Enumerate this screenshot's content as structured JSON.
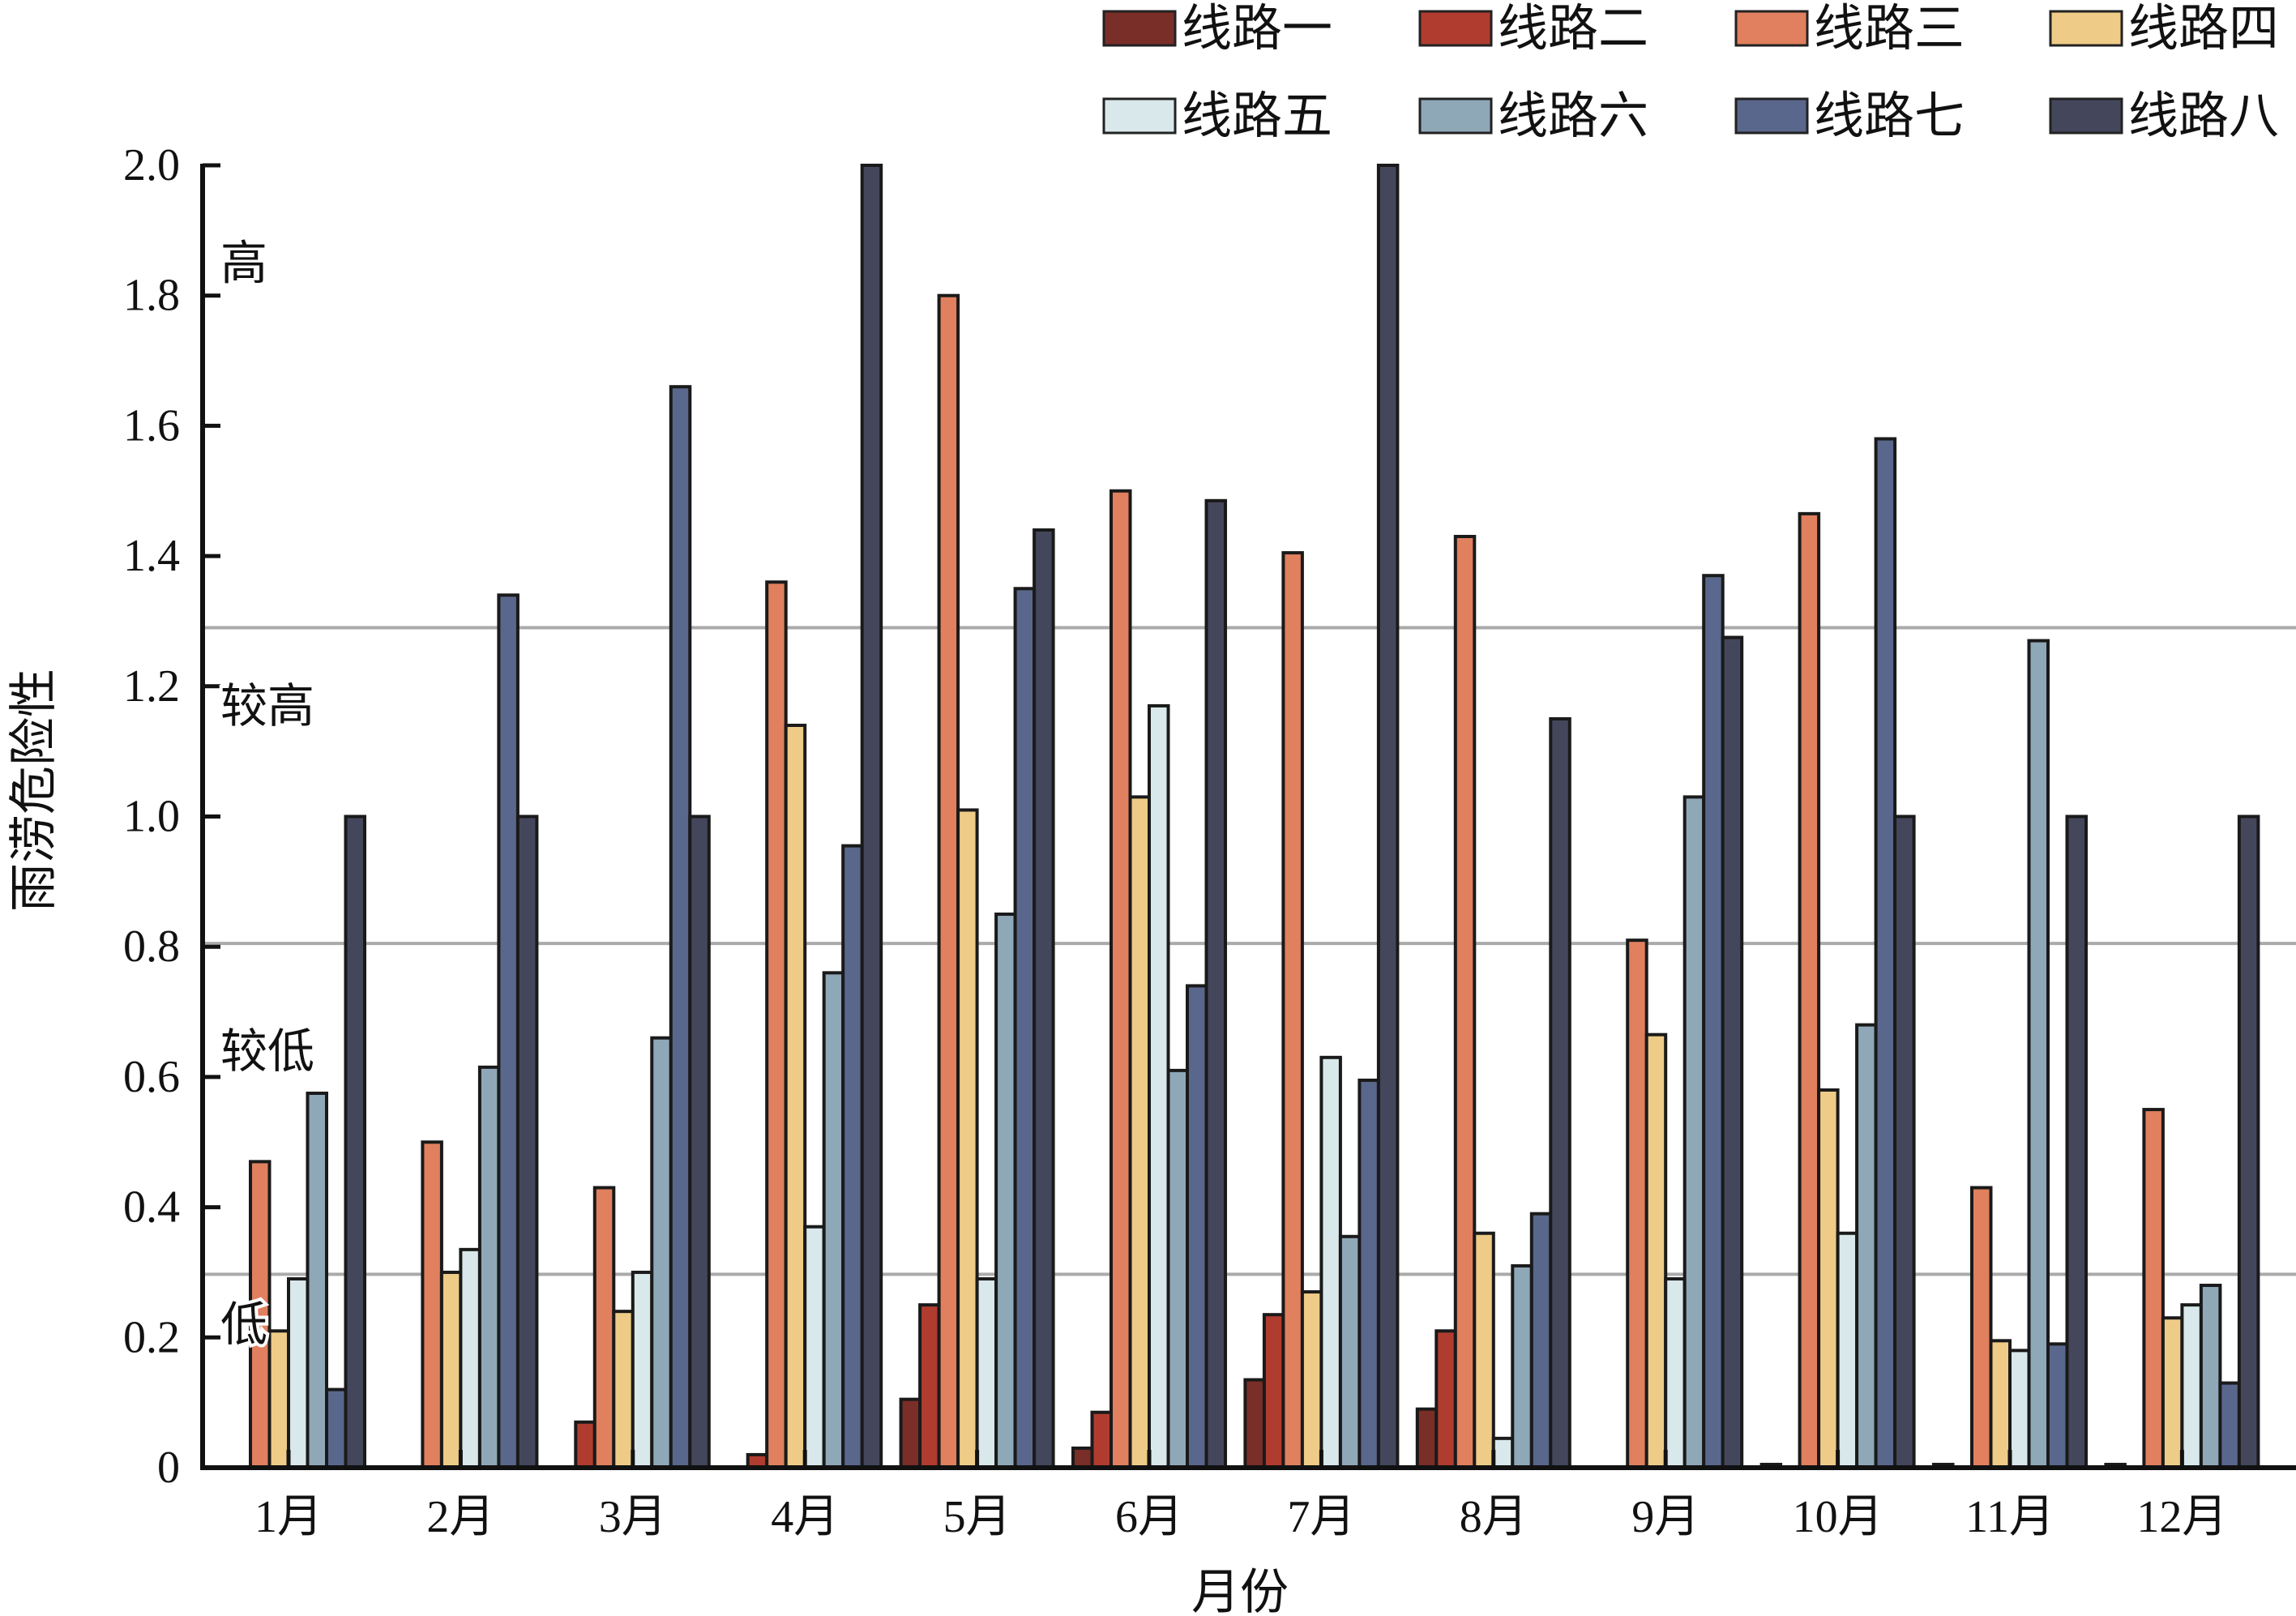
{
  "chart_data": {
    "type": "bar",
    "title": "",
    "xlabel": "月份",
    "ylabel": "雨涝危险性",
    "ylim": [
      0,
      2.0
    ],
    "yticks": [
      "0",
      "0.2",
      "0.4",
      "0.6",
      "0.8",
      "1.0",
      "1.2",
      "1.4",
      "1.6",
      "1.8",
      "2.0"
    ],
    "categories": [
      "1月",
      "2月",
      "3月",
      "4月",
      "5月",
      "6月",
      "7月",
      "8月",
      "9月",
      "10月",
      "11月",
      "12月"
    ],
    "legend_position": "top-right",
    "thresholds": [
      0.297,
      0.805,
      1.29
    ],
    "zone_labels": [
      {
        "label": "高",
        "y": 1.85
      },
      {
        "label": "较高",
        "y": 1.17
      },
      {
        "label": "较低",
        "y": 0.64
      },
      {
        "label": "低",
        "y": 0.22
      }
    ],
    "series": [
      {
        "name": "线路一",
        "color": "#7a2e28",
        "values": [
          0,
          0,
          0,
          0,
          0.105,
          0.03,
          0.135,
          0.09,
          0,
          0.005,
          0.005,
          0.005
        ]
      },
      {
        "name": "线路二",
        "color": "#b03c2f",
        "values": [
          0,
          0,
          0.07,
          0.02,
          0.25,
          0.085,
          0.235,
          0.21,
          0,
          0,
          0,
          0
        ]
      },
      {
        "name": "线路三",
        "color": "#e0805e",
        "values": [
          0.47,
          0.5,
          0.43,
          1.36,
          1.8,
          1.5,
          1.405,
          1.43,
          0.81,
          1.465,
          0.43,
          0.55
        ]
      },
      {
        "name": "线路四",
        "color": "#efcb88",
        "values": [
          0.21,
          0.3,
          0.24,
          1.14,
          1.01,
          1.03,
          0.27,
          0.36,
          0.665,
          0.58,
          0.195,
          0.23
        ]
      },
      {
        "name": "线路五",
        "color": "#d9e8ea",
        "values": [
          0.29,
          0.335,
          0.3,
          0.37,
          0.29,
          1.17,
          0.63,
          0.045,
          0.29,
          0.36,
          0.18,
          0.25
        ]
      },
      {
        "name": "线路六",
        "color": "#8fa8b8",
        "values": [
          0.575,
          0.615,
          0.66,
          0.76,
          0.85,
          0.61,
          0.355,
          0.31,
          1.03,
          0.68,
          1.27,
          0.28
        ]
      },
      {
        "name": "线路七",
        "color": "#5a678c",
        "values": [
          0.12,
          1.34,
          1.66,
          0.955,
          1.35,
          0.74,
          0.595,
          0.39,
          1.37,
          1.58,
          0.19,
          0.13
        ]
      },
      {
        "name": "线路八",
        "color": "#44475c",
        "values": [
          1.0,
          1.0,
          1.0,
          2.0,
          1.44,
          1.485,
          2.0,
          1.15,
          1.275,
          1.0,
          1.0,
          1.0
        ]
      }
    ]
  }
}
